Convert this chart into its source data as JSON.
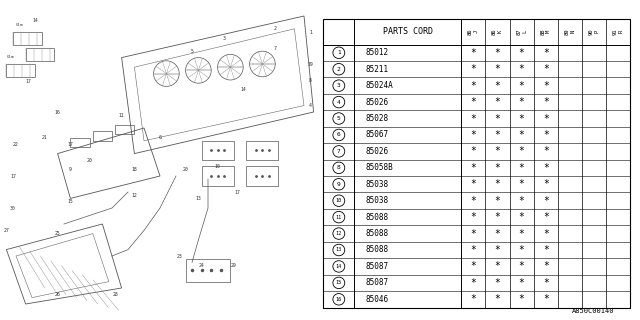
{
  "title": "A850C00140",
  "parts_cord_header": "PARTS CORD",
  "col_headers": [
    "86\n(J)",
    "86\n(K)",
    "87\n(L)",
    "88\n(M)",
    "89\n(N)",
    "90\n(P)",
    "91\n(R)"
  ],
  "rows": [
    {
      "num": 1,
      "code": "85012",
      "marks": [
        1,
        1,
        1,
        1,
        0,
        0,
        0
      ]
    },
    {
      "num": 2,
      "code": "85211",
      "marks": [
        1,
        1,
        1,
        1,
        0,
        0,
        0
      ]
    },
    {
      "num": 3,
      "code": "85024A",
      "marks": [
        1,
        1,
        1,
        1,
        0,
        0,
        0
      ]
    },
    {
      "num": 4,
      "code": "85026",
      "marks": [
        1,
        1,
        1,
        1,
        0,
        0,
        0
      ]
    },
    {
      "num": 5,
      "code": "85028",
      "marks": [
        1,
        1,
        1,
        1,
        0,
        0,
        0
      ]
    },
    {
      "num": 6,
      "code": "85067",
      "marks": [
        1,
        1,
        1,
        1,
        0,
        0,
        0
      ]
    },
    {
      "num": 7,
      "code": "85026",
      "marks": [
        1,
        1,
        1,
        1,
        0,
        0,
        0
      ]
    },
    {
      "num": 8,
      "code": "85058B",
      "marks": [
        1,
        1,
        1,
        1,
        0,
        0,
        0
      ]
    },
    {
      "num": 9,
      "code": "85038",
      "marks": [
        1,
        1,
        1,
        1,
        0,
        0,
        0
      ]
    },
    {
      "num": 10,
      "code": "85038",
      "marks": [
        1,
        1,
        1,
        1,
        0,
        0,
        0
      ]
    },
    {
      "num": 11,
      "code": "85088",
      "marks": [
        1,
        1,
        1,
        1,
        0,
        0,
        0
      ]
    },
    {
      "num": 12,
      "code": "85088",
      "marks": [
        1,
        1,
        1,
        1,
        0,
        0,
        0
      ]
    },
    {
      "num": 13,
      "code": "85088",
      "marks": [
        1,
        1,
        1,
        1,
        0,
        0,
        0
      ]
    },
    {
      "num": 14,
      "code": "85087",
      "marks": [
        1,
        1,
        1,
        1,
        0,
        0,
        0
      ]
    },
    {
      "num": 15,
      "code": "85087",
      "marks": [
        1,
        1,
        1,
        1,
        0,
        0,
        0
      ]
    },
    {
      "num": 16,
      "code": "85046",
      "marks": [
        1,
        1,
        1,
        1,
        0,
        0,
        0
      ]
    }
  ],
  "bg_color": "#ffffff",
  "line_color": "#000000",
  "text_color": "#000000",
  "diagram_bg": "#f0f0f0"
}
